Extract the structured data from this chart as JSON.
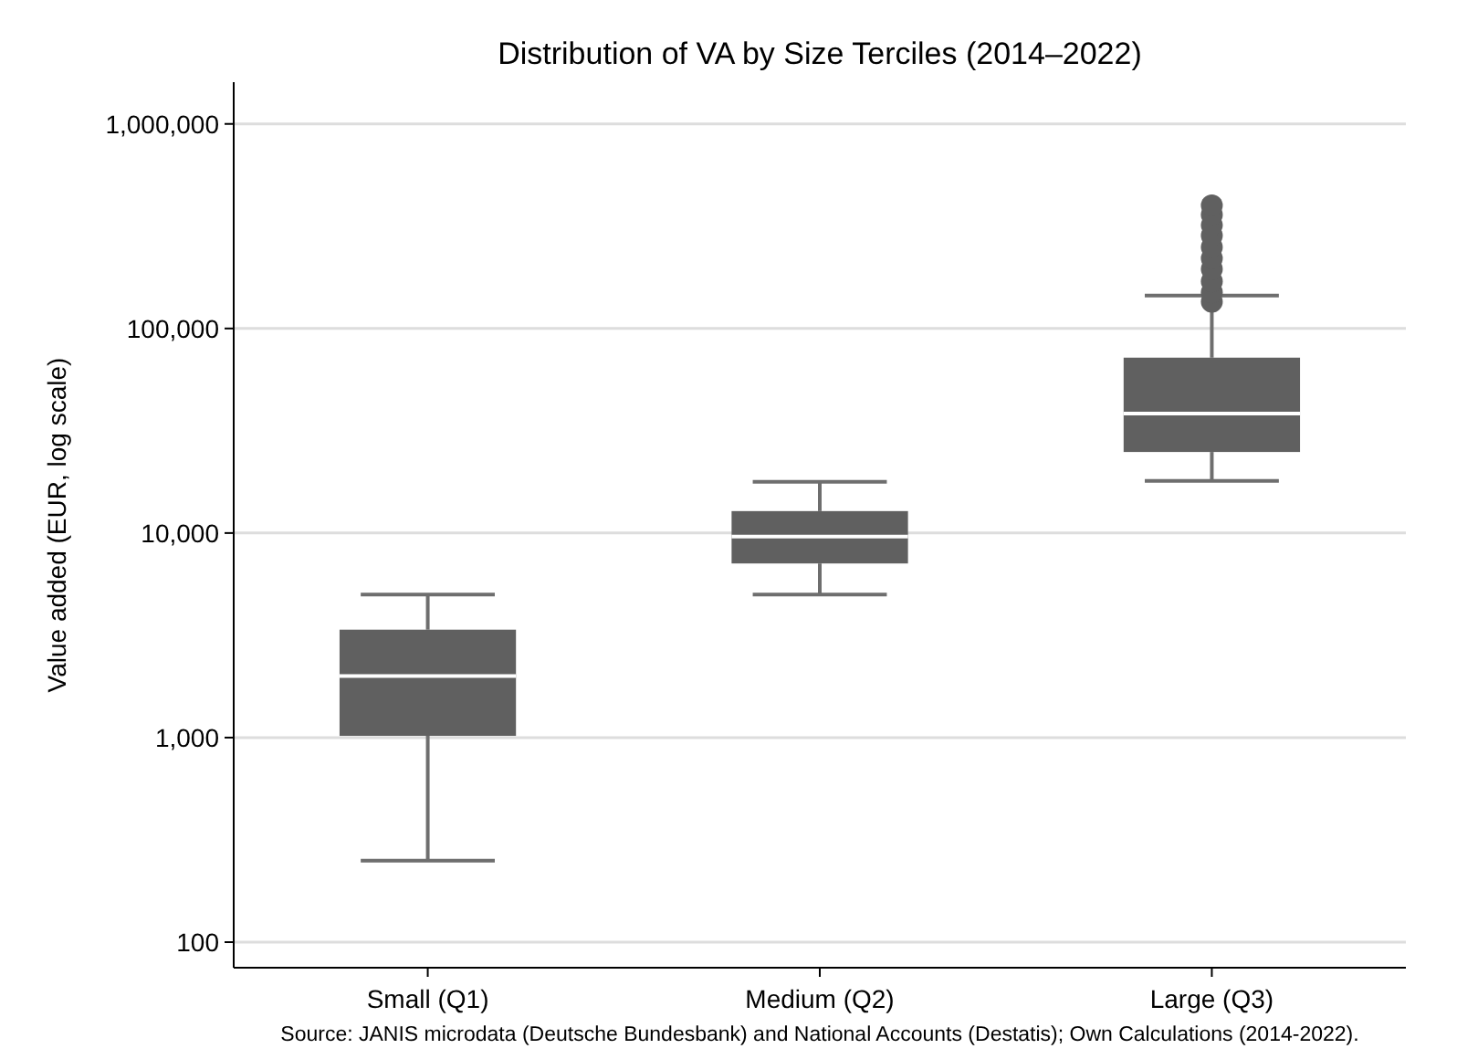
{
  "chart_data": {
    "type": "box",
    "title": "Distribution of VA by Size Terciles (2014–2022)",
    "ylabel": "Value added (EUR, log scale)",
    "categories": [
      "Small (Q1)",
      "Medium (Q2)",
      "Large (Q3)"
    ],
    "log": true,
    "grid": "y",
    "color": "#606060",
    "ylim": [
      75,
      1600000
    ],
    "yticks": [
      {
        "value": 100,
        "label": "100"
      },
      {
        "value": 1000,
        "label": "1,000"
      },
      {
        "value": 10000,
        "label": "10,000"
      },
      {
        "value": 100000,
        "label": "100,000"
      },
      {
        "value": 1000000,
        "label": "1,000,000"
      }
    ],
    "boxes": [
      {
        "low": 250,
        "q1": 1020,
        "median": 2000,
        "q3": 3370,
        "high": 5000
      },
      {
        "low": 5000,
        "q1": 7100,
        "median": 9600,
        "q3": 12800,
        "high": 17800
      },
      {
        "low": 18000,
        "q1": 24900,
        "median": 38400,
        "q3": 72000,
        "high": 145000,
        "outliers": [
          135000,
          150000,
          170000,
          195000,
          220000,
          250000,
          285000,
          320000,
          360000,
          400000
        ]
      }
    ],
    "annotations": [
      "Source: JANIS microdata (Deutsche Bundesbank) and National Accounts (Destatis); Own Calculations (2014-2022)."
    ]
  }
}
